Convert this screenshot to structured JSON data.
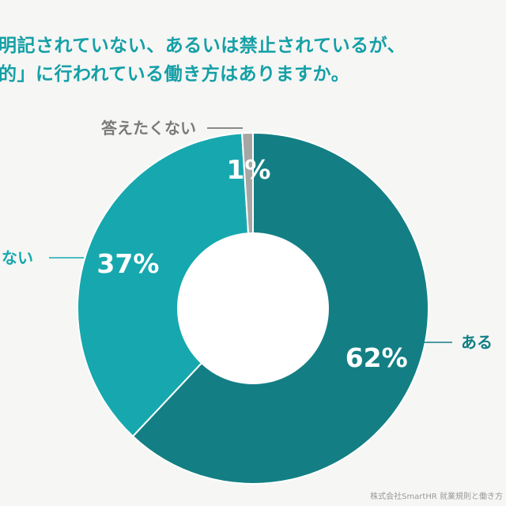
{
  "title": {
    "line1": "明記されていない、あるいは禁止されているが、",
    "line2": "的」に行われている働き方はありますか。"
  },
  "source": "株式会社SmartHR 就業規則と働き方",
  "chart_data": {
    "type": "pie",
    "donut": true,
    "slices": [
      {
        "label": "ある",
        "value": 62,
        "display": "62%",
        "color": "#137f84"
      },
      {
        "label": "ない",
        "value": 37,
        "display": "37%",
        "color": "#16a8ae"
      },
      {
        "label": "答えたくない",
        "value": 1,
        "display": "1%",
        "color": "#a6a6a4"
      }
    ],
    "start_angle": "12 o'clock",
    "direction": "clockwise",
    "legend": "none"
  }
}
